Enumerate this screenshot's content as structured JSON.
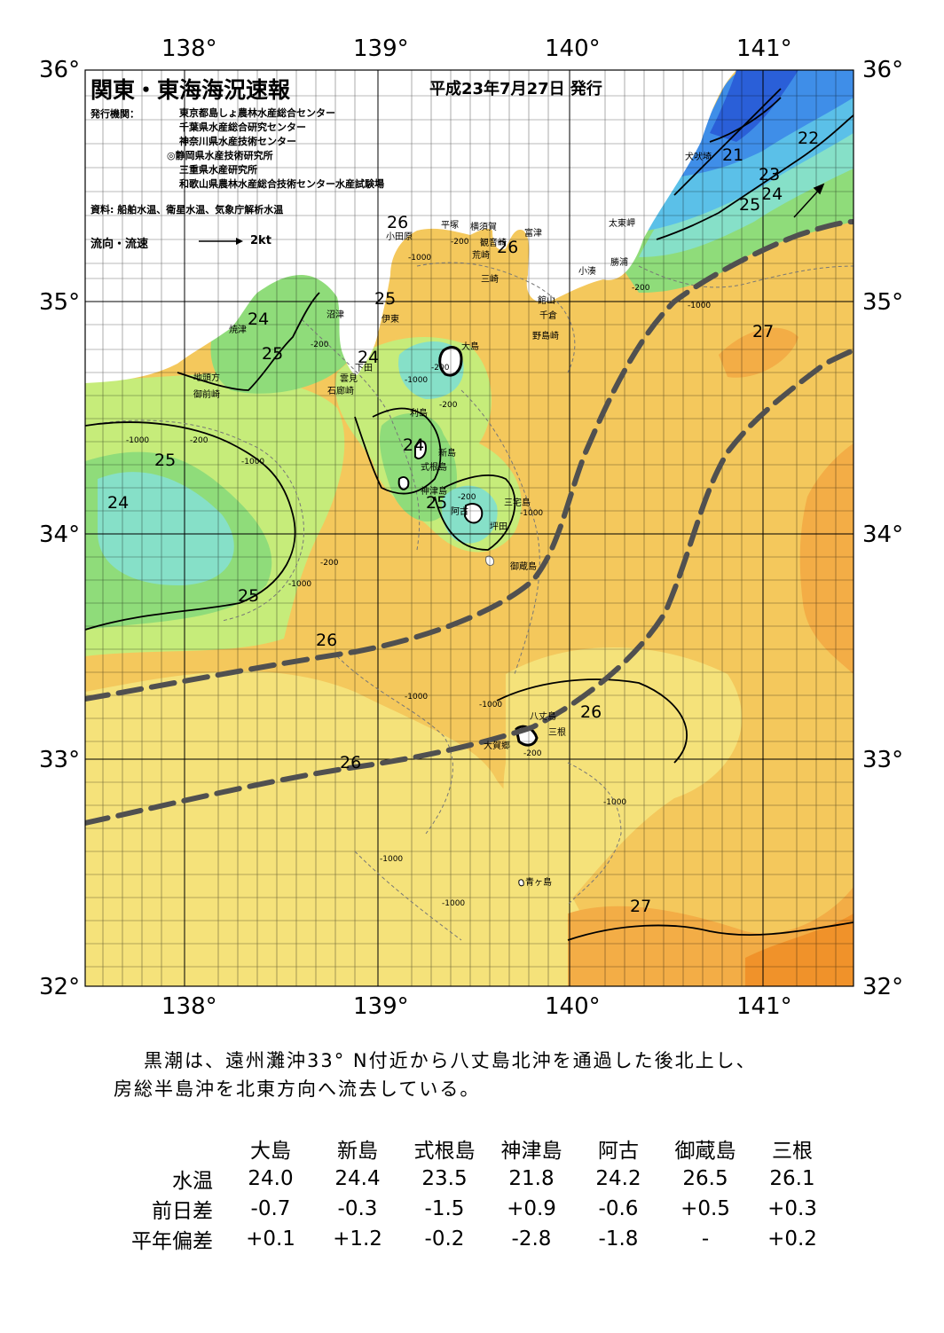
{
  "header": {
    "title": "関東・東海海況速報",
    "date": "平成23年7月27日 発行",
    "issuer_label": "発行機関：",
    "issuers": [
      "東京都島しょ農林水産総合センター",
      "千葉県水産総合研究センター",
      "神奈川県水産技術センター",
      "◎静岡県水産技術研究所",
      "三重県水産研究所",
      "和歌山県農林水産総合技術センター水産試験場"
    ],
    "source": "資料: 船舶水温、衛星水温、気象庁解析水温",
    "current_legend": "流向・流速",
    "current_scale": "2kt"
  },
  "axes": {
    "lon_labels": [
      "138°",
      "139°",
      "140°",
      "141°"
    ],
    "lat_labels": [
      "36°",
      "35°",
      "34°",
      "33°",
      "32°"
    ]
  },
  "places": [
    "犬吠埼",
    "太東岬",
    "勝浦",
    "小湊",
    "富津",
    "館山",
    "千倉",
    "野島崎",
    "平塚",
    "横須賀",
    "観音崎",
    "荒崎",
    "三崎",
    "小田原",
    "沼津",
    "伊東",
    "焼津",
    "大島",
    "下田",
    "雲見",
    "石廊崎",
    "地頭方",
    "御前崎",
    "利島",
    "新島",
    "式根島",
    "神津島",
    "三宅島",
    "阿古",
    "坪田",
    "御蔵島",
    "八丈島",
    "三根",
    "大賀郷",
    "青ヶ島"
  ],
  "temperature_labels": [
    "21",
    "22",
    "23",
    "24",
    "25",
    "24",
    "25",
    "26",
    "26",
    "25",
    "24",
    "25",
    "24",
    "25",
    "24",
    "25",
    "25",
    "24",
    "27",
    "25",
    "26",
    "26",
    "26",
    "27"
  ],
  "depth_labels": [
    "-200",
    "-1000"
  ],
  "summary": [
    "黒潮は、遠州灘沖33° N付近から八丈島北沖を通過した後北上し、",
    "房総半島沖を北東方向へ流去している。"
  ],
  "table": {
    "columns": [
      "大島",
      "新島",
      "式根島",
      "神津島",
      "阿古",
      "御蔵島",
      "三根"
    ],
    "rows": [
      {
        "label": "水温",
        "values": [
          "24.0",
          "24.4",
          "23.5",
          "21.8",
          "24.2",
          "26.5",
          "26.1"
        ]
      },
      {
        "label": "前日差",
        "values": [
          "-0.7",
          "-0.3",
          "-1.5",
          "+0.9",
          "-0.6",
          "+0.5",
          "+0.3"
        ]
      },
      {
        "label": "平年偏差",
        "values": [
          "+0.1",
          "+1.2",
          "-0.2",
          "-2.8",
          "-1.8",
          "-",
          "+0.2"
        ]
      }
    ]
  },
  "colors": {
    "t21": "#2a5fd8",
    "t22": "#3f8ee8",
    "t23": "#5bc0e8",
    "t24": "#86e0c8",
    "t25": "#8fdc7a",
    "t25b": "#c6ec7a",
    "t26": "#f5e27a",
    "t26b": "#f4c85c",
    "t27": "#f3ad46",
    "t28": "#f0922a",
    "land": "#ffffff",
    "kuroshio": "#505050"
  }
}
